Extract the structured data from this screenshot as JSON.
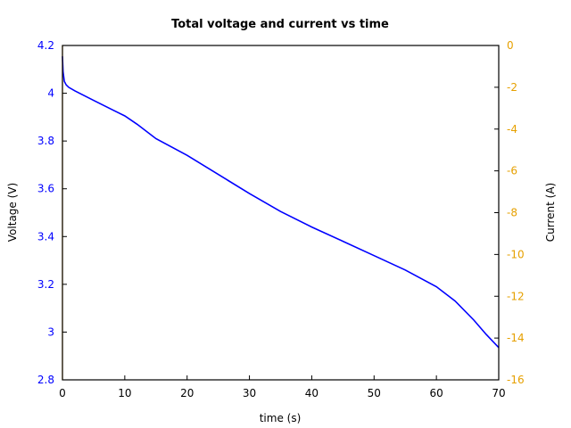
{
  "chart_data": {
    "type": "line",
    "title": "Total voltage and current vs time",
    "xlabel": "time (s)",
    "ylabel": "Voltage (V)",
    "y2label": "Current (A)",
    "xlim": [
      0,
      70
    ],
    "ylim": [
      2.8,
      4.2
    ],
    "y2lim": [
      -16,
      0
    ],
    "grid": false,
    "x_ticks": [
      "0",
      "10",
      "20",
      "30",
      "40",
      "50",
      "60",
      "70"
    ],
    "y_ticks": [
      "2.8",
      "3",
      "3.2",
      "3.4",
      "3.6",
      "3.8",
      "4",
      "4.2"
    ],
    "y2_ticks": [
      "-16",
      "-14",
      "-12",
      "-10",
      "-8",
      "-6",
      "-4",
      "-2",
      "0"
    ],
    "series": [
      {
        "name": "Voltage",
        "axis": "left",
        "color": "#0000ff",
        "x": [
          0,
          0.1,
          0.3,
          0.6,
          1,
          2,
          5,
          10,
          12,
          15,
          20,
          25,
          30,
          35,
          40,
          45,
          50,
          55,
          60,
          63,
          66,
          68,
          70
        ],
        "y": [
          4.155,
          4.09,
          4.05,
          4.035,
          4.025,
          4.01,
          3.97,
          3.905,
          3.87,
          3.81,
          3.74,
          3.66,
          3.58,
          3.505,
          3.44,
          3.38,
          3.32,
          3.26,
          3.19,
          3.13,
          3.05,
          2.99,
          2.935
        ]
      },
      {
        "name": "Current",
        "axis": "right",
        "color": "#e6a000",
        "x": [
          0,
          0
        ],
        "y": [
          -16,
          0
        ]
      }
    ]
  }
}
